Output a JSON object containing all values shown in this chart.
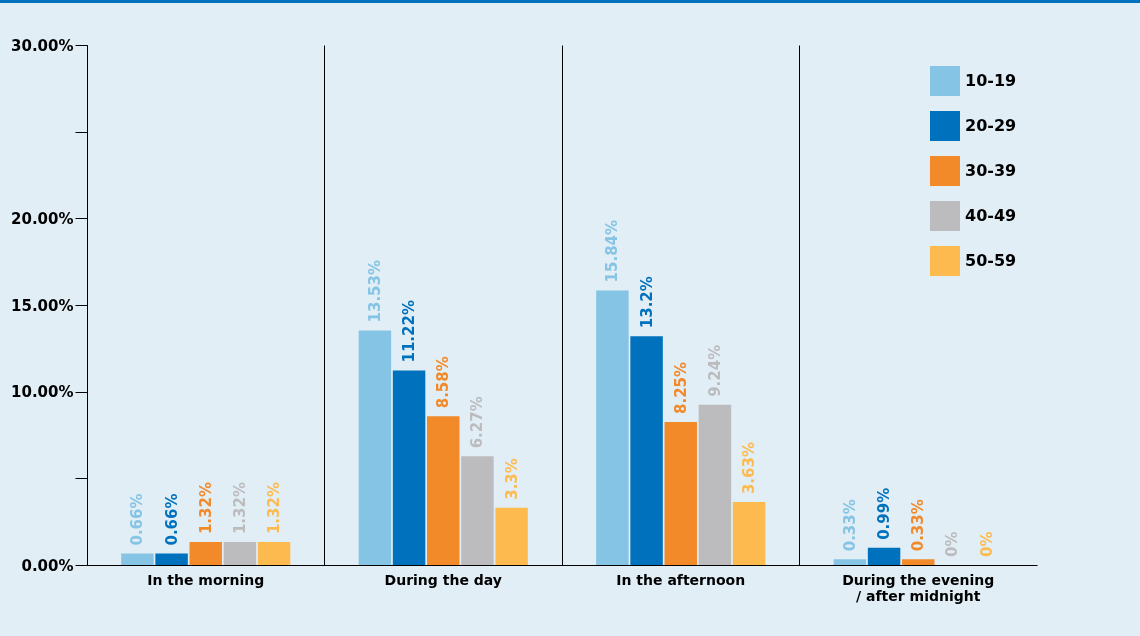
{
  "chart_data": {
    "type": "bar",
    "categories": [
      "In the morning",
      "During the day",
      "In the afternoon",
      "During the evening / after midnight"
    ],
    "series": [
      {
        "name": "10-19",
        "color": "#85c4e4",
        "values": [
          0.66,
          13.53,
          15.84,
          0.33
        ]
      },
      {
        "name": "20-29",
        "color": "#0071bc",
        "values": [
          0.66,
          11.22,
          13.2,
          0.99
        ]
      },
      {
        "name": "30-39",
        "color": "#f28a2a",
        "values": [
          1.32,
          8.58,
          8.25,
          0.33
        ]
      },
      {
        "name": "40-49",
        "color": "#bcbcbe",
        "values": [
          1.32,
          6.27,
          9.24,
          0
        ]
      },
      {
        "name": "50-59",
        "color": "#fdbb4f",
        "values": [
          1.32,
          3.3,
          3.63,
          0
        ]
      }
    ],
    "value_labels": [
      [
        "0.66%",
        "13.53%",
        "15.84%",
        "0.33%"
      ],
      [
        "0.66%",
        "11.22%",
        "13.2%",
        "0.99%"
      ],
      [
        "1.32%",
        "8.58%",
        "8.25%",
        "0.33%"
      ],
      [
        "1.32%",
        "6.27%",
        "9.24%",
        "0%"
      ],
      [
        "1.32%",
        "3.3%",
        "3.63%",
        "0%"
      ]
    ],
    "ylim": [
      0,
      30
    ],
    "yticks": [
      {
        "value": 0,
        "label": "0.00%"
      },
      {
        "value": 5,
        "label": null
      },
      {
        "value": 10,
        "label": "10.00%"
      },
      {
        "value": 15,
        "label": "15.00%"
      },
      {
        "value": 20,
        "label": "20.00%"
      },
      {
        "value": 25,
        "label": null
      },
      {
        "value": 30,
        "label": "30.00%"
      }
    ],
    "grid": "x",
    "legend": "top right"
  }
}
